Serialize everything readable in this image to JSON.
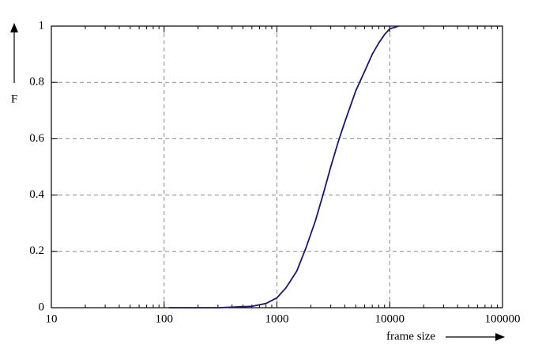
{
  "chart_data": {
    "type": "line",
    "xlabel": "frame size",
    "ylabel": "F",
    "xscale": "log",
    "grid": true,
    "color": "#16167a",
    "x": [
      110,
      300,
      600,
      800,
      1000,
      1200,
      1500,
      1800,
      2200,
      2600,
      3000,
      3500,
      4000,
      5000,
      6000,
      7000,
      8000,
      9000,
      10000,
      12000
    ],
    "values": [
      0,
      0,
      0.005,
      0.015,
      0.035,
      0.07,
      0.13,
      0.21,
      0.31,
      0.41,
      0.5,
      0.59,
      0.66,
      0.77,
      0.84,
      0.9,
      0.94,
      0.97,
      0.99,
      1
    ],
    "xlim": [
      10,
      100000
    ],
    "ylim": [
      0,
      1
    ],
    "xticks": [
      10,
      100,
      1000,
      10000,
      100000
    ],
    "yticks": [
      0,
      0.2,
      0.4,
      0.6,
      0.8,
      1
    ]
  }
}
